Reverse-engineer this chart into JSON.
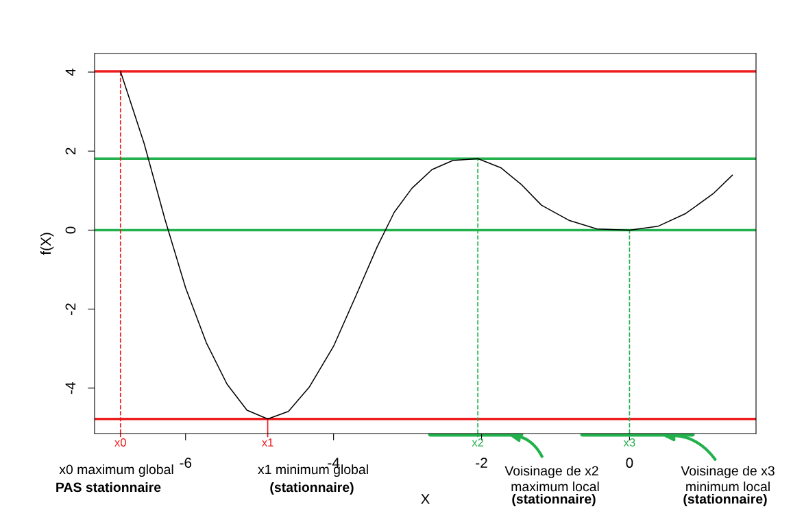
{
  "chart_data": {
    "type": "line",
    "xlabel": "X",
    "ylabel": "f(X)",
    "x": [
      -6.88,
      -6.56,
      -6.28,
      -6.0,
      -5.72,
      -5.44,
      -5.17,
      -4.89,
      -4.61,
      -4.33,
      -4.0,
      -3.69,
      -3.41,
      -3.18,
      -2.94,
      -2.67,
      -2.39,
      -2.05,
      -1.74,
      -1.46,
      -1.19,
      -0.81,
      -0.44,
      0,
      0.39,
      0.76,
      1.13,
      1.39
    ],
    "series": [
      {
        "color": "#000000",
        "values": [
          4.02,
          2.19,
          0.28,
          -1.46,
          -2.85,
          -3.9,
          -4.56,
          -4.78,
          -4.59,
          -3.98,
          -2.94,
          -1.63,
          -0.42,
          0.45,
          1.06,
          1.53,
          1.76,
          1.81,
          1.58,
          1.15,
          0.63,
          0.24,
          0.03,
          0,
          0.1,
          0.42,
          0.92,
          1.39
        ]
      }
    ],
    "xlim": [
      -7.23,
      1.71
    ],
    "ylim": [
      -5.15,
      4.47
    ],
    "xticks": [
      -6,
      -4,
      -2,
      0
    ],
    "yticks": [
      -4,
      -2,
      0,
      2,
      4
    ],
    "grid": false,
    "marker": "none",
    "line_style": "solid",
    "ref_lines": [
      {
        "axis": "y",
        "value": 4.02,
        "color": "#ee1c1c",
        "line_style": "solid"
      },
      {
        "axis": "y",
        "value": -4.78,
        "color": "#ee1c1c",
        "line_style": "solid"
      },
      {
        "axis": "y",
        "value": 1.81,
        "color": "#22b14c",
        "line_style": "solid"
      },
      {
        "axis": "y",
        "value": 0,
        "color": "#22b14c",
        "line_style": "solid"
      },
      {
        "axis": "x",
        "value": -6.88,
        "label": "x0",
        "color": "#ee1c1c",
        "line_style": "dashed"
      },
      {
        "axis": "x",
        "value": -4.89,
        "label": "x1",
        "color": "#ee1c1c",
        "line_style": "solid"
      },
      {
        "axis": "x",
        "value": -2.05,
        "label": "x2",
        "color": "#22b14c",
        "line_style": "dashed"
      },
      {
        "axis": "x",
        "value": 0,
        "label": "x3",
        "color": "#22b14c",
        "line_style": "dashed"
      }
    ],
    "annotations": [
      "x0 maximum global",
      "PAS stationnaire",
      "x1 minimum global",
      "(stationnaire)",
      "Voisinage de x2",
      "maximum local",
      "(stationnaire)",
      "Voisinage de x3",
      "minimum local",
      "(stationnaire)"
    ]
  }
}
